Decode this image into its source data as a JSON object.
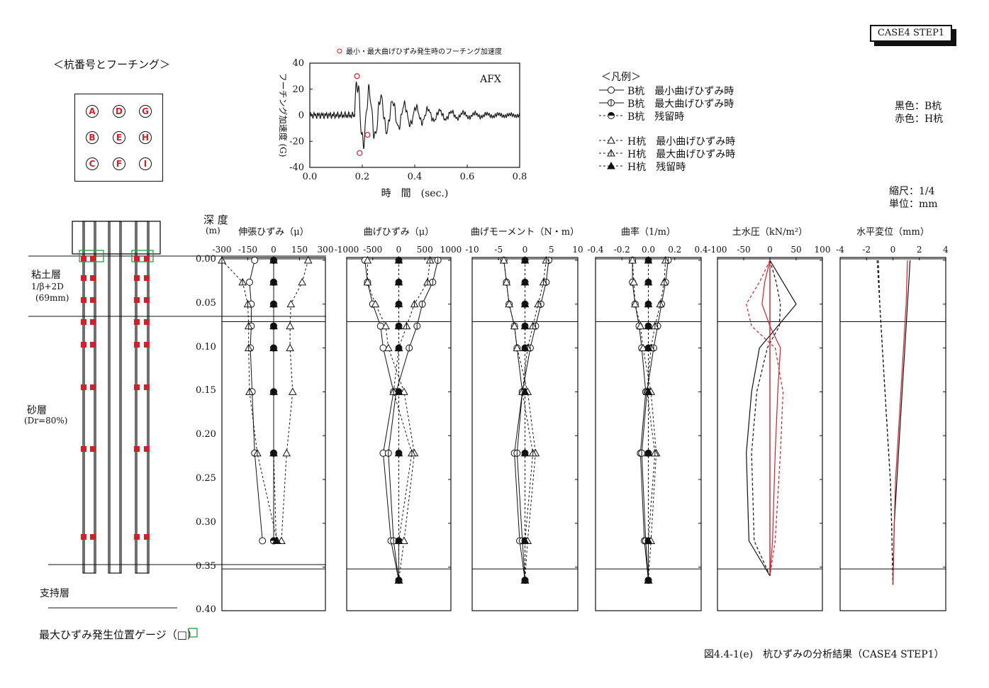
{
  "badge": "CASE4 STEP1",
  "pile_layout": {
    "title": "＜杭番号とフーチング＞",
    "piles": [
      "A",
      "D",
      "G",
      "B",
      "E",
      "H",
      "C",
      "F",
      "I"
    ]
  },
  "legend": {
    "title": "＜凡例＞",
    "items": [
      "B杭　最小曲げひずみ時",
      "B杭　最大曲げひずみ時",
      "B杭　残留時",
      "H杭　最小曲げひずみ時",
      "H杭　最大曲げひずみ時",
      "H杭　残留時"
    ],
    "color_black": "黒色：B杭",
    "color_red": "赤色：H杭",
    "scale": "縮尺：1/4",
    "unit": "単位：mm",
    "red": "#d0202a"
  },
  "soil": {
    "clay": "粘土層",
    "clay_note1": "1/β+2D",
    "clay_note2": "(69mm)",
    "sand": "砂層",
    "sand_note": "(Dr=80%)",
    "support": "支持層",
    "gauge_note": "最大ひずみ発生位置ゲージ（□）"
  },
  "depth_axis": {
    "title": "深 度",
    "unit": "(m)",
    "ticks": [
      "0.00",
      "0.05",
      "0.10",
      "0.15",
      "0.20",
      "0.25",
      "0.30",
      "0.35",
      "0.40"
    ]
  },
  "caption": "図4.4-1(e)　杭ひずみの分析結果（CASE4 STEP1）",
  "chart_data": [
    {
      "type": "line",
      "title": "最小・最大曲げひずみ発生時のフーチング加速度",
      "annotation": "AFX",
      "xlabel": "時　間　(sec.)",
      "ylabel": "フーチング加速度 (G)",
      "xlim": [
        0,
        0.8
      ],
      "ylim": [
        -40,
        40
      ],
      "xticks": [
        "0.0",
        "0.2",
        "0.4",
        "0.6",
        "0.8"
      ],
      "yticks": [
        "40",
        "20",
        "0",
        "-20",
        "-40"
      ],
      "markers": [
        {
          "x": 0.18,
          "y": 30
        },
        {
          "x": 0.19,
          "y": -29
        },
        {
          "x": 0.22,
          "y": -15
        }
      ]
    },
    {
      "type": "line",
      "title": "伸張ひずみ（μ）",
      "xticks": [
        "-300",
        "-150",
        "0",
        "150",
        "300"
      ],
      "xlim": [
        -300,
        300
      ],
      "depth": [
        0.0,
        0.025,
        0.05,
        0.075,
        0.1,
        0.15,
        0.22,
        0.32
      ],
      "series": [
        {
          "name": "B杭　最小曲げひずみ時",
          "values": [
            -110,
            -140,
            -130,
            -130,
            -135,
            -125,
            -110,
            -65
          ]
        },
        {
          "name": "B杭　最大曲げひずみ時",
          "values": [
            0,
            0,
            0,
            0,
            0,
            0,
            0,
            0
          ]
        },
        {
          "name": "B杭　残留時",
          "values": [
            0,
            0,
            0,
            0,
            0,
            0,
            0,
            0
          ]
        },
        {
          "name": "H杭　最小曲げひずみ時",
          "values": [
            200,
            165,
            100,
            95,
            95,
            110,
            75,
            45
          ]
        },
        {
          "name": "H杭　最大曲げひずみ時",
          "values": [
            -300,
            -180,
            -150,
            -145,
            -145,
            -140,
            -95,
            20
          ]
        },
        {
          "name": "H杭　残留時",
          "values": [
            0,
            0,
            0,
            0,
            0,
            0,
            0,
            15
          ]
        }
      ]
    },
    {
      "type": "line",
      "title": "曲げひずみ（μ）",
      "xticks": [
        "-1000",
        "-500",
        "0",
        "500",
        "1000"
      ],
      "xlim": [
        -1000,
        1000
      ],
      "depth": [
        0.0,
        0.025,
        0.05,
        0.075,
        0.1,
        0.15,
        0.22,
        0.32,
        0.365
      ],
      "series": [
        {
          "name": "B杭　最小曲げひずみ時",
          "values": [
            -650,
            -600,
            -500,
            -350,
            -300,
            -100,
            -300,
            -150,
            0
          ]
        },
        {
          "name": "B杭　最大曲げひずみ時",
          "values": [
            750,
            650,
            450,
            350,
            200,
            -50,
            -200,
            -100,
            0
          ]
        },
        {
          "name": "B杭　残留時",
          "values": [
            0,
            0,
            0,
            0,
            0,
            0,
            0,
            0,
            0
          ]
        },
        {
          "name": "H杭　最小曲げひずみ時",
          "values": [
            -600,
            -600,
            -450,
            -250,
            -200,
            100,
            300,
            100,
            0
          ]
        },
        {
          "name": "H杭　最大曲げひずみ時",
          "values": [
            600,
            550,
            300,
            150,
            0,
            -100,
            250,
            0,
            0
          ]
        },
        {
          "name": "H杭　残留時",
          "values": [
            0,
            0,
            0,
            0,
            0,
            0,
            0,
            0,
            0
          ]
        }
      ]
    },
    {
      "type": "line",
      "title": "曲げモーメント（N・m）",
      "xticks": [
        "-10",
        "-5",
        "0",
        "5",
        "10"
      ],
      "xlim": [
        -10,
        10
      ],
      "depth": [
        0.0,
        0.025,
        0.05,
        0.075,
        0.1,
        0.15,
        0.22,
        0.32,
        0.365
      ],
      "series": [
        {
          "name": "B杭　最小曲げひずみ時",
          "values": [
            -4,
            -3.5,
            -3,
            -2,
            -1.5,
            -0.5,
            -2,
            -1,
            0
          ]
        },
        {
          "name": "B杭　最大曲げひずみ時",
          "values": [
            4.5,
            4,
            3,
            2,
            1,
            -0.5,
            -1.5,
            -0.5,
            0
          ]
        },
        {
          "name": "B杭　残留時",
          "values": [
            0,
            0,
            0,
            0,
            0,
            0,
            0,
            0,
            0
          ]
        },
        {
          "name": "H杭　最小曲げひずみ時",
          "values": [
            -4,
            -3.5,
            -3,
            -2,
            -1.5,
            0.5,
            2,
            0.5,
            0
          ]
        },
        {
          "name": "H杭　最大曲げひずみ時",
          "values": [
            4,
            3.5,
            2.5,
            1.5,
            0.5,
            -0.5,
            1.5,
            0,
            0
          ]
        },
        {
          "name": "H杭　残留時",
          "values": [
            0,
            0,
            0,
            0,
            0,
            0,
            0,
            0,
            0
          ]
        }
      ]
    },
    {
      "type": "line",
      "title": "曲率（1/m）",
      "xticks": [
        "-0.4",
        "-0.2",
        "0.0",
        "0.2",
        "0.4"
      ],
      "xlim": [
        -0.4,
        0.4
      ],
      "depth": [
        0.0,
        0.025,
        0.05,
        0.075,
        0.1,
        0.15,
        0.22,
        0.32,
        0.365
      ],
      "series": [
        {
          "name": "B杭　最小曲げひずみ時",
          "values": [
            -0.12,
            -0.12,
            -0.1,
            -0.07,
            -0.05,
            -0.02,
            -0.06,
            -0.03,
            0
          ]
        },
        {
          "name": "B杭　最大曲げひずみ時",
          "values": [
            0.15,
            0.13,
            0.1,
            0.07,
            0.04,
            -0.01,
            -0.05,
            -0.02,
            0
          ]
        },
        {
          "name": "B杭　残留時",
          "values": [
            0,
            0,
            0,
            0,
            0,
            0,
            0,
            0,
            0
          ]
        },
        {
          "name": "H杭　最小曲げひずみ時",
          "values": [
            -0.12,
            -0.11,
            -0.1,
            -0.06,
            -0.04,
            0.02,
            0.06,
            0.02,
            0
          ]
        },
        {
          "name": "H杭　最大曲げひずみ時",
          "values": [
            0.13,
            0.12,
            0.09,
            0.05,
            0.02,
            -0.01,
            0.05,
            0,
            0
          ]
        },
        {
          "name": "H杭　残留時",
          "values": [
            0,
            0,
            0,
            0,
            0,
            0,
            0,
            0,
            0
          ]
        }
      ]
    },
    {
      "type": "line",
      "title": "土水圧（kN/m²）",
      "xticks": [
        "-100",
        "-50",
        "0",
        "50",
        "100"
      ],
      "xlim": [
        -100,
        100
      ],
      "depth": [
        0.0,
        0.025,
        0.05,
        0.075,
        0.1,
        0.15,
        0.22,
        0.32,
        0.36
      ],
      "series": [
        {
          "name": "B杭　最小曲げひずみ時",
          "values": [
            0,
            12,
            20,
            18,
            -5,
            -25,
            -35,
            -30,
            0
          ]
        },
        {
          "name": "B杭　最大曲げひずみ時",
          "values": [
            0,
            25,
            50,
            15,
            -20,
            -35,
            -45,
            -40,
            0
          ]
        },
        {
          "name": "B杭　残留時",
          "values": [
            0,
            0,
            0,
            0,
            0,
            0,
            0,
            0,
            0
          ]
        },
        {
          "name": "H杭　最小曲げひずみ時",
          "values": [
            0,
            -20,
            -45,
            -35,
            10,
            25,
            20,
            10,
            0
          ]
        },
        {
          "name": "H杭　最大曲げひずみ時",
          "values": [
            0,
            -10,
            -15,
            0,
            20,
            15,
            10,
            5,
            0
          ]
        },
        {
          "name": "H杭　残留時",
          "values": [
            0,
            0,
            0,
            0,
            0,
            0,
            0,
            0,
            0
          ]
        }
      ]
    },
    {
      "type": "line",
      "title": "水平変位（mm）",
      "xticks": [
        "-4",
        "-2",
        "0",
        "2",
        "4"
      ],
      "xlim": [
        -4,
        4
      ],
      "depth": [
        0.0,
        0.05,
        0.1,
        0.15,
        0.2,
        0.25,
        0.3,
        0.37
      ],
      "series": [
        {
          "name": "B杭　最小曲げひずみ時",
          "values": [
            -1.2,
            -1.0,
            -0.8,
            -0.6,
            -0.4,
            -0.2,
            -0.1,
            0
          ]
        },
        {
          "name": "B杭　最大曲げひずみ時",
          "values": [
            1.3,
            1.1,
            0.9,
            0.7,
            0.5,
            0.3,
            0.1,
            0
          ]
        },
        {
          "name": "H杭　最小曲げひずみ時",
          "values": [
            -1.1,
            -1.0,
            -0.8,
            -0.6,
            -0.4,
            -0.2,
            -0.1,
            0
          ]
        },
        {
          "name": "H杭　最大曲げひずみ時",
          "values": [
            1.1,
            1.0,
            0.8,
            0.6,
            0.4,
            0.2,
            0.1,
            0
          ]
        }
      ]
    }
  ]
}
